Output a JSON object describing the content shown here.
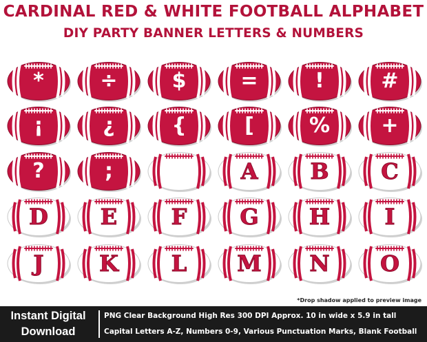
{
  "title": "CARDINAL RED & WHITE FOOTBALL ALPHABET",
  "subtitle": "DIY PARTY BANNER LETTERS & NUMBERS",
  "colors": {
    "accent": "#b3123a",
    "ball_red": "#c41440",
    "ball_white": "#ffffff",
    "footer_bg": "#1b1b1b"
  },
  "balls": [
    {
      "glyph": "*",
      "style": "red"
    },
    {
      "glyph": "÷",
      "style": "red"
    },
    {
      "glyph": "$",
      "style": "red"
    },
    {
      "glyph": "=",
      "style": "red"
    },
    {
      "glyph": "!",
      "style": "red"
    },
    {
      "glyph": "#",
      "style": "red"
    },
    {
      "glyph": "¡",
      "style": "red"
    },
    {
      "glyph": "¿",
      "style": "red"
    },
    {
      "glyph": "{",
      "style": "red"
    },
    {
      "glyph": "[",
      "style": "red"
    },
    {
      "glyph": "%",
      "style": "red"
    },
    {
      "glyph": "+",
      "style": "red"
    },
    {
      "glyph": "?",
      "style": "red"
    },
    {
      "glyph": ";",
      "style": "red"
    },
    {
      "glyph": "",
      "style": "white"
    },
    {
      "glyph": "A",
      "style": "white"
    },
    {
      "glyph": "B",
      "style": "white"
    },
    {
      "glyph": "C",
      "style": "white"
    },
    {
      "glyph": "D",
      "style": "white"
    },
    {
      "glyph": "E",
      "style": "white"
    },
    {
      "glyph": "F",
      "style": "white"
    },
    {
      "glyph": "G",
      "style": "white"
    },
    {
      "glyph": "H",
      "style": "white"
    },
    {
      "glyph": "I",
      "style": "white"
    },
    {
      "glyph": "J",
      "style": "white"
    },
    {
      "glyph": "K",
      "style": "white"
    },
    {
      "glyph": "L",
      "style": "white"
    },
    {
      "glyph": "M",
      "style": "white"
    },
    {
      "glyph": "N",
      "style": "white"
    },
    {
      "glyph": "O",
      "style": "white"
    }
  ],
  "note": "*Drop shadow applied to preview image",
  "footer": {
    "instant_line1": "Instant Digital",
    "instant_line2": "Download",
    "line1": "PNG Clear Background  High Res 300 DPI  Approx. 10 in wide x 5.9 in tall",
    "line2": "Capital  Letters A-Z, Numbers 0-9, Various Punctuation Marks, Blank Football"
  }
}
